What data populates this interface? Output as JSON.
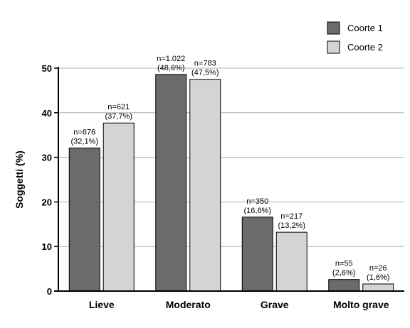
{
  "chart_data": {
    "type": "bar",
    "title": "",
    "xlabel": "",
    "ylabel": "Soggetti (%)",
    "ylim": [
      0,
      50
    ],
    "yticks": [
      "0",
      "10",
      "20",
      "30",
      "40",
      "50"
    ],
    "grid": true,
    "legend_position": "top-right",
    "categories": [
      "Lieve",
      "Moderato",
      "Grave",
      "Molto grave"
    ],
    "series": [
      {
        "name": "Coorte 1",
        "color": "#6b6b6b",
        "values": [
          32.1,
          48.6,
          16.6,
          2.6
        ],
        "labels": [
          [
            "n=676",
            "(32,1%)"
          ],
          [
            "n=1.022",
            "(48,6%)"
          ],
          [
            "n=350",
            "(16,6%)"
          ],
          [
            "n=55",
            "(2,6%)"
          ]
        ]
      },
      {
        "name": "Coorte 2",
        "color": "#d4d4d4",
        "values": [
          37.7,
          47.5,
          13.2,
          1.6
        ],
        "labels": [
          [
            "n=621",
            "(37,7%)"
          ],
          [
            "n=783",
            "(47,5%)"
          ],
          [
            "n=217",
            "(13,2%)"
          ],
          [
            "n=26",
            "(1,6%)"
          ]
        ]
      }
    ]
  }
}
